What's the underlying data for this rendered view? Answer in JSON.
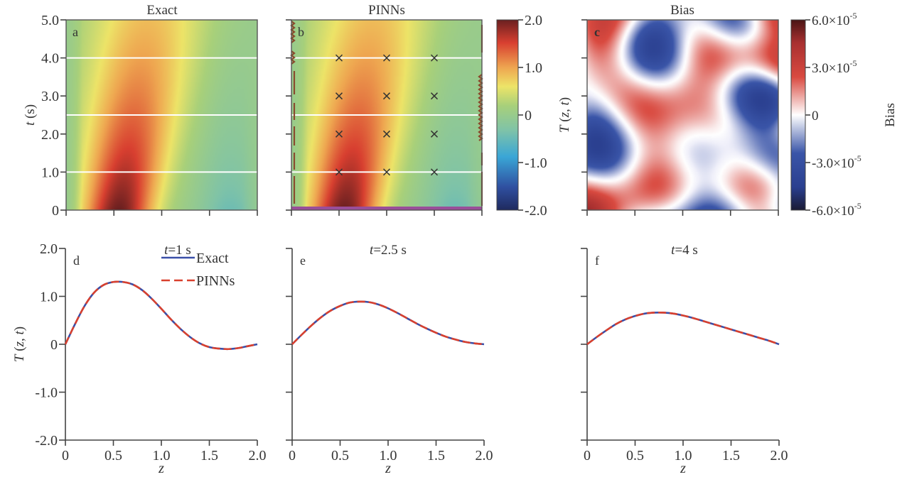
{
  "figure": {
    "panels_top": [
      {
        "id": "a",
        "title": "Exact",
        "field": "exact"
      },
      {
        "id": "b",
        "title": "PINNs",
        "field": "pinns"
      },
      {
        "id": "c",
        "title": "Bias",
        "field": "bias"
      }
    ],
    "panels_bottom": [
      {
        "id": "d",
        "title": "t=1 s",
        "t": 1
      },
      {
        "id": "e",
        "title": "t=2.5 s",
        "t": 2.5
      },
      {
        "id": "f",
        "title": "t=4 s",
        "t": 4
      }
    ]
  },
  "chart_data": [
    {
      "type": "heatmap",
      "panel": "a",
      "title": "Exact",
      "xlabel": "",
      "ylabel": "t (s)",
      "xlim": [
        0,
        2.0
      ],
      "ylim": [
        0,
        5.0
      ],
      "yticks": [
        "0",
        "1.0",
        "2.0",
        "3.0",
        "4.0",
        "5.0"
      ],
      "yticks_values": [
        0,
        1,
        2,
        3,
        4,
        5
      ],
      "xticks_values": [
        0,
        0.5,
        1.0,
        1.5,
        2.0
      ],
      "slice_lines_t": [
        1,
        2.5,
        4
      ],
      "colormap": "Spectral_r",
      "clim": [
        -2.0,
        2.0
      ],
      "description": "T(z,t) field: hot region near z≈0.6 at t=0 (peak ≈2) decaying and widening with time; cooler (≈-0.5) near z≈1.7 at t≈0"
    },
    {
      "type": "heatmap",
      "panel": "b",
      "title": "PINNs",
      "xlim": [
        0,
        2.0
      ],
      "ylim": [
        0,
        5.0
      ],
      "xticks_values": [
        0,
        0.5,
        1.0,
        1.5,
        2.0
      ],
      "yticks_values": [
        0,
        1,
        2,
        3,
        4,
        5
      ],
      "slice_lines_t": [
        1,
        2.5,
        4
      ],
      "markers": {
        "symbol": "x",
        "z": [
          0.5,
          1.0,
          1.5
        ],
        "t": [
          1,
          2,
          3,
          4
        ]
      },
      "boundary_points": "brown markers along z=0 and z=2 edges",
      "initial_points": "purple band along t=0",
      "colorbar": {
        "label": "T (z, t)",
        "ticks": [
          "2.0",
          "1.0",
          "0",
          "-1.0",
          "-2.0"
        ],
        "tick_values": [
          2.0,
          1.0,
          0,
          -1.0,
          -2.0
        ],
        "clim": [
          -2.0,
          2.0
        ]
      }
    },
    {
      "type": "heatmap",
      "panel": "c",
      "title": "Bias",
      "xlim": [
        0,
        2.0
      ],
      "ylim": [
        0,
        5.0
      ],
      "xticks_values": [
        0,
        0.5,
        1.0,
        1.5,
        2.0
      ],
      "yticks_values": [
        0,
        1,
        2,
        3,
        4,
        5
      ],
      "colormap": "RdBu_r (dark)",
      "clim": [
        -6e-05,
        6e-05
      ],
      "colorbar": {
        "label": "Bias",
        "ticks": [
          "6.0×10",
          "3.0×10",
          "0",
          "-3.0×10",
          "-6.0×10"
        ],
        "tick_exponents": [
          "-5",
          "-5",
          "",
          "-5",
          "-5"
        ],
        "tick_values": [
          6e-05,
          3e-05,
          0,
          -3e-05,
          -6e-05
        ]
      }
    },
    {
      "type": "line",
      "panel": "d",
      "title": "t=1 s",
      "xlabel": "z",
      "ylabel": "T (z, t)",
      "xlim": [
        0,
        2.0
      ],
      "ylim": [
        -2.0,
        2.0
      ],
      "xticks": [
        "0",
        "0.5",
        "1.0",
        "1.5",
        "2.0"
      ],
      "yticks": [
        "2.0",
        "1.0",
        "0",
        "-1.0",
        "-2.0"
      ],
      "legend": {
        "position": "top-right",
        "entries": [
          "Exact",
          "PINNs"
        ]
      },
      "x": [
        0,
        0.1,
        0.2,
        0.3,
        0.4,
        0.5,
        0.6,
        0.7,
        0.8,
        0.9,
        1.0,
        1.1,
        1.2,
        1.3,
        1.4,
        1.5,
        1.6,
        1.7,
        1.8,
        1.9,
        2.0
      ],
      "series": [
        {
          "name": "Exact",
          "color": "#3a4fa8",
          "style": "solid",
          "values": [
            0,
            0.42,
            0.8,
            1.08,
            1.24,
            1.3,
            1.3,
            1.25,
            1.13,
            0.95,
            0.74,
            0.52,
            0.32,
            0.15,
            0.02,
            -0.06,
            -0.09,
            -0.1,
            -0.08,
            -0.04,
            0
          ]
        },
        {
          "name": "PINNs",
          "color": "#d9402e",
          "style": "dashed",
          "values": [
            0,
            0.42,
            0.8,
            1.08,
            1.24,
            1.3,
            1.3,
            1.25,
            1.13,
            0.95,
            0.74,
            0.52,
            0.32,
            0.15,
            0.02,
            -0.06,
            -0.09,
            -0.1,
            -0.08,
            -0.04,
            0
          ]
        }
      ]
    },
    {
      "type": "line",
      "panel": "e",
      "title": "t=2.5 s",
      "xlabel": "z",
      "xlim": [
        0,
        2.0
      ],
      "ylim": [
        -2.0,
        2.0
      ],
      "xticks": [
        "0",
        "0.5",
        "1.0",
        "1.5",
        "2.0"
      ],
      "x": [
        0,
        0.1,
        0.2,
        0.3,
        0.4,
        0.5,
        0.6,
        0.7,
        0.8,
        0.9,
        1.0,
        1.1,
        1.2,
        1.3,
        1.4,
        1.5,
        1.6,
        1.7,
        1.8,
        1.9,
        2.0
      ],
      "series": [
        {
          "name": "Exact",
          "color": "#3a4fa8",
          "style": "solid",
          "values": [
            0,
            0.2,
            0.39,
            0.56,
            0.7,
            0.8,
            0.87,
            0.89,
            0.88,
            0.83,
            0.75,
            0.65,
            0.54,
            0.43,
            0.33,
            0.24,
            0.16,
            0.1,
            0.05,
            0.02,
            0
          ]
        },
        {
          "name": "PINNs",
          "color": "#d9402e",
          "style": "dashed",
          "values": [
            0,
            0.2,
            0.39,
            0.56,
            0.7,
            0.8,
            0.87,
            0.89,
            0.88,
            0.83,
            0.75,
            0.65,
            0.54,
            0.43,
            0.33,
            0.24,
            0.16,
            0.1,
            0.05,
            0.02,
            0
          ]
        }
      ]
    },
    {
      "type": "line",
      "panel": "f",
      "title": "t=4 s",
      "xlabel": "z",
      "xlim": [
        0,
        2.0
      ],
      "ylim": [
        -2.0,
        2.0
      ],
      "xticks": [
        "0",
        "0.5",
        "1.0",
        "1.5",
        "2.0"
      ],
      "x": [
        0,
        0.1,
        0.2,
        0.3,
        0.4,
        0.5,
        0.6,
        0.7,
        0.8,
        0.9,
        1.0,
        1.1,
        1.2,
        1.3,
        1.4,
        1.5,
        1.6,
        1.7,
        1.8,
        1.9,
        2.0
      ],
      "series": [
        {
          "name": "Exact",
          "color": "#3a4fa8",
          "style": "solid",
          "values": [
            0,
            0.15,
            0.29,
            0.42,
            0.52,
            0.59,
            0.64,
            0.66,
            0.66,
            0.64,
            0.6,
            0.55,
            0.49,
            0.43,
            0.37,
            0.31,
            0.25,
            0.19,
            0.13,
            0.07,
            0
          ]
        },
        {
          "name": "PINNs",
          "color": "#d9402e",
          "style": "dashed",
          "values": [
            0,
            0.15,
            0.29,
            0.42,
            0.52,
            0.59,
            0.64,
            0.66,
            0.66,
            0.64,
            0.6,
            0.55,
            0.49,
            0.43,
            0.37,
            0.31,
            0.25,
            0.19,
            0.13,
            0.07,
            0
          ]
        }
      ]
    }
  ]
}
